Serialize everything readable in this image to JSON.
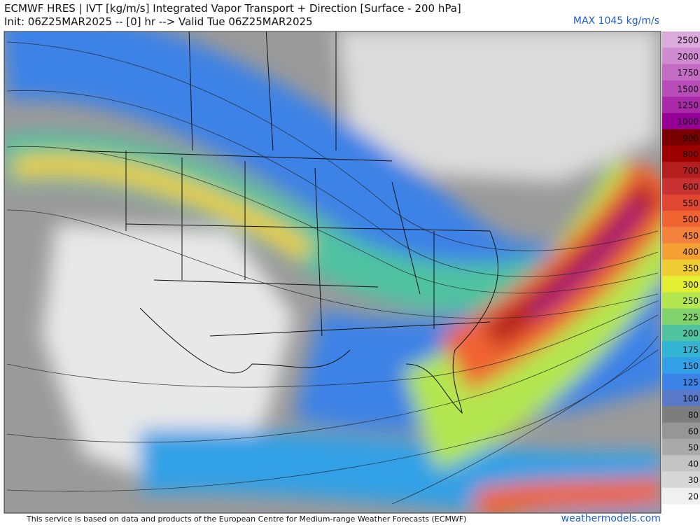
{
  "header": {
    "title": "ECMWF HRES | IVT [kg/m/s] Integrated Vapor Transport + Direction [Surface - 200 hPa]",
    "subtitle": "Init: 06Z25MAR2025 -- [0] hr --> Valid Tue 06Z25MAR2025",
    "max_label": "MAX 1045 kg/m/s"
  },
  "colorbar": {
    "levels": [
      2500,
      2000,
      1750,
      1500,
      1250,
      1000,
      900,
      800,
      700,
      600,
      550,
      500,
      450,
      400,
      350,
      300,
      250,
      225,
      200,
      175,
      150,
      125,
      100,
      80,
      60,
      50,
      40,
      30,
      20
    ],
    "colors": [
      "#dcaadc",
      "#d08cd0",
      "#c46cc4",
      "#b84cb8",
      "#a82aa8",
      "#960096",
      "#7a0000",
      "#9e0000",
      "#b41e1e",
      "#c83232",
      "#e04632",
      "#f06432",
      "#f5823c",
      "#f5a032",
      "#f0cd32",
      "#e6f032",
      "#b4e650",
      "#82d26e",
      "#50c3a0",
      "#32b4d2",
      "#32a0e6",
      "#3c82e6",
      "#5a78c8",
      "#7d7d7d",
      "#969696",
      "#aaaaaa",
      "#c3c3c3",
      "#d7d7d7",
      "#f0f0f0"
    ]
  },
  "footer": {
    "credit": "This service is based on data and products of the European Centre for Medium-range Weather Forecasts (ECMWF)",
    "site": "weathermodels.com"
  }
}
